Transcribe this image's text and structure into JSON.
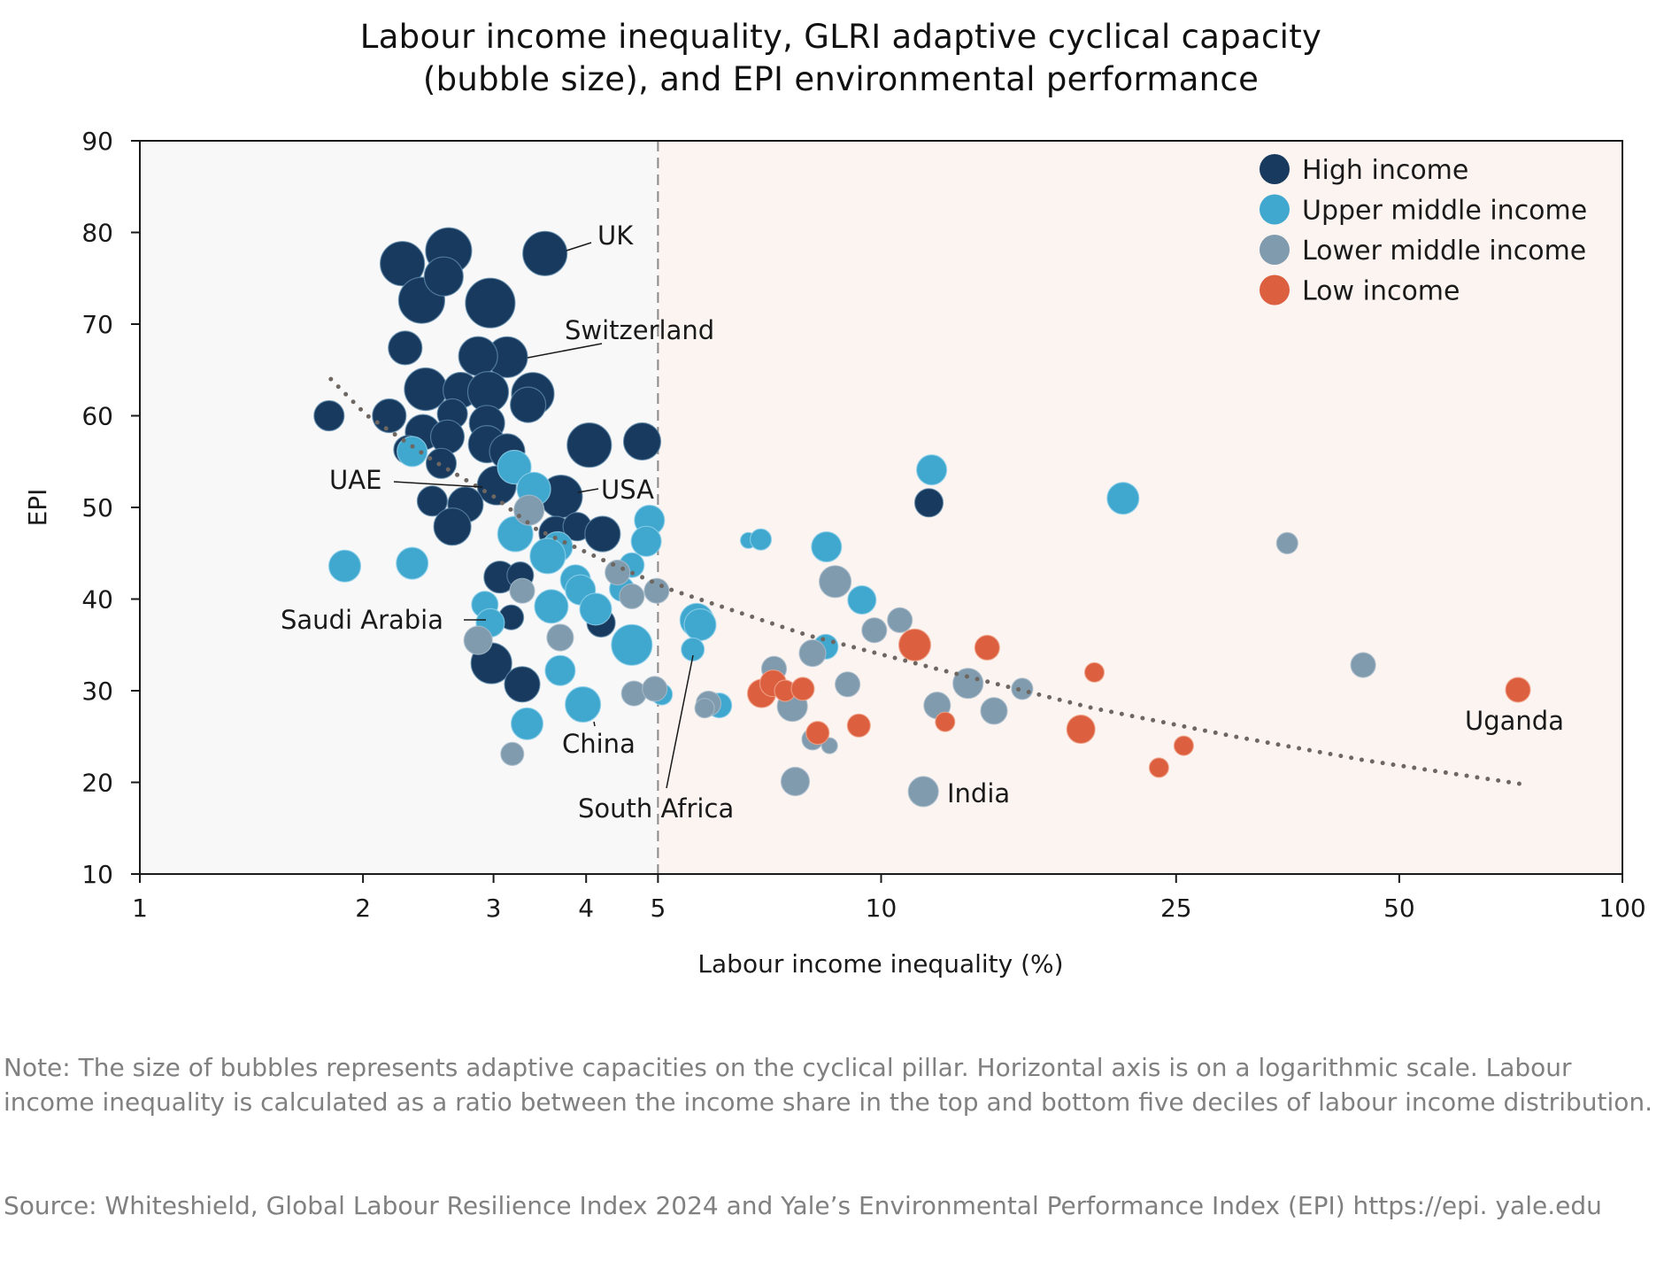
{
  "chart_data": {
    "type": "scatter",
    "subtype": "bubble",
    "title_lines": [
      "Labour income inequality, GLRI adaptive cyclical capacity",
      "(bubble size), and EPI environmental performance"
    ],
    "xlabel": "Labour income inequality (%)",
    "ylabel": "EPI",
    "x_scale": "log",
    "xlim": [
      1,
      100
    ],
    "ylim": [
      10,
      90
    ],
    "x_ticks": [
      1,
      2,
      3,
      4,
      5,
      10,
      25,
      50,
      100
    ],
    "x_tick_labels": [
      "1",
      "2",
      "3",
      "4",
      "5",
      "10",
      "25",
      "50",
      "100"
    ],
    "y_ticks": [
      10,
      20,
      30,
      40,
      50,
      60,
      70,
      80,
      90
    ],
    "y_tick_labels": [
      "10",
      "20",
      "30",
      "40",
      "50",
      "60",
      "70",
      "80",
      "90"
    ],
    "grid": false,
    "reference_line": {
      "x": 5,
      "style": "dashed",
      "color": "#8a8a8a"
    },
    "regions": [
      {
        "from": 1,
        "to": 5,
        "color": "#f8f8f8"
      },
      {
        "from": 5,
        "to": 100,
        "color": "#fcf4f1"
      }
    ],
    "legend": {
      "placement": "top-right",
      "entries": [
        {
          "key": "high",
          "label": "High income",
          "color": "#173a5e"
        },
        {
          "key": "upper",
          "label": "Upper middle income",
          "color": "#40a8cf"
        },
        {
          "key": "lower",
          "label": "Lower middle income",
          "color": "#7f9bad"
        },
        {
          "key": "low",
          "label": "Low income",
          "color": "#dc6040"
        }
      ]
    },
    "size_legend_note": "bubble size = adaptive capacity on the cyclical pillar (relative)",
    "trendline": {
      "style": "dotted",
      "color": "#6e6660",
      "points": [
        [
          1.81,
          64.0
        ],
        [
          2.02,
          60.1
        ],
        [
          2.5,
          55.0
        ],
        [
          3.0,
          51.2
        ],
        [
          3.43,
          47.6
        ],
        [
          4.23,
          44.2
        ],
        [
          5.17,
          41.1
        ],
        [
          7.92,
          36.1
        ],
        [
          12.0,
          32.3
        ],
        [
          19.3,
          28.1
        ],
        [
          30.0,
          25.0
        ],
        [
          45.0,
          22.4
        ],
        [
          72.7,
          19.85
        ]
      ]
    },
    "series": [
      {
        "name": "High income",
        "key": "high",
        "points": [
          {
            "x": 2.26,
            "y": 76.6,
            "size": 75
          },
          {
            "x": 2.61,
            "y": 78.0,
            "size": 78
          },
          {
            "x": 2.4,
            "y": 72.6,
            "size": 78
          },
          {
            "x": 2.57,
            "y": 75.2,
            "size": 66
          },
          {
            "x": 2.97,
            "y": 72.3,
            "size": 84
          },
          {
            "x": 3.52,
            "y": 77.7,
            "size": 75,
            "label": "UK"
          },
          {
            "x": 2.28,
            "y": 67.4,
            "size": 57
          },
          {
            "x": 3.13,
            "y": 66.4,
            "size": 69,
            "label": "Switzerland"
          },
          {
            "x": 2.86,
            "y": 66.5,
            "size": 66
          },
          {
            "x": 1.8,
            "y": 60.0,
            "size": 51
          },
          {
            "x": 2.17,
            "y": 60.0,
            "size": 57
          },
          {
            "x": 2.43,
            "y": 62.9,
            "size": 72
          },
          {
            "x": 2.71,
            "y": 62.8,
            "size": 60
          },
          {
            "x": 2.95,
            "y": 62.6,
            "size": 69
          },
          {
            "x": 3.39,
            "y": 62.4,
            "size": 72
          },
          {
            "x": 3.34,
            "y": 61.2,
            "size": 60
          },
          {
            "x": 2.64,
            "y": 60.2,
            "size": 51
          },
          {
            "x": 2.41,
            "y": 58.2,
            "size": 60
          },
          {
            "x": 2.6,
            "y": 57.7,
            "size": 57
          },
          {
            "x": 2.94,
            "y": 59.2,
            "size": 60
          },
          {
            "x": 2.94,
            "y": 56.9,
            "size": 63
          },
          {
            "x": 3.13,
            "y": 56.1,
            "size": 60
          },
          {
            "x": 2.3,
            "y": 56.3,
            "size": 48
          },
          {
            "x": 2.55,
            "y": 54.8,
            "size": 51
          },
          {
            "x": 3.03,
            "y": 52.4,
            "size": 66
          },
          {
            "x": 4.04,
            "y": 56.8,
            "size": 75
          },
          {
            "x": 4.76,
            "y": 57.2,
            "size": 63
          },
          {
            "x": 3.7,
            "y": 51.2,
            "size": 72,
            "label": "USA"
          },
          {
            "x": 2.48,
            "y": 50.7,
            "size": 51
          },
          {
            "x": 2.75,
            "y": 50.3,
            "size": 60,
            "label": "UAE"
          },
          {
            "x": 2.64,
            "y": 47.9,
            "size": 63
          },
          {
            "x": 3.64,
            "y": 47.2,
            "size": 57
          },
          {
            "x": 3.89,
            "y": 47.9,
            "size": 48
          },
          {
            "x": 4.21,
            "y": 47.1,
            "size": 60
          },
          {
            "x": 3.06,
            "y": 42.4,
            "size": 54
          },
          {
            "x": 3.26,
            "y": 42.6,
            "size": 45
          },
          {
            "x": 3.17,
            "y": 38.0,
            "size": 42
          },
          {
            "x": 4.19,
            "y": 37.4,
            "size": 48
          },
          {
            "x": 2.98,
            "y": 33.0,
            "size": 69
          },
          {
            "x": 3.28,
            "y": 30.7,
            "size": 60
          },
          {
            "x": 11.6,
            "y": 50.5,
            "size": 48
          }
        ]
      },
      {
        "name": "Upper middle income",
        "key": "upper",
        "points": [
          {
            "x": 2.33,
            "y": 56.1,
            "size": 51
          },
          {
            "x": 3.2,
            "y": 54.4,
            "size": 57
          },
          {
            "x": 3.4,
            "y": 52.0,
            "size": 57
          },
          {
            "x": 3.21,
            "y": 47.1,
            "size": 60
          },
          {
            "x": 3.66,
            "y": 45.7,
            "size": 51
          },
          {
            "x": 3.55,
            "y": 44.7,
            "size": 60
          },
          {
            "x": 1.89,
            "y": 43.6,
            "size": 54
          },
          {
            "x": 2.33,
            "y": 43.9,
            "size": 54
          },
          {
            "x": 3.87,
            "y": 42.1,
            "size": 51
          },
          {
            "x": 3.93,
            "y": 41.0,
            "size": 51
          },
          {
            "x": 4.87,
            "y": 48.6,
            "size": 51
          },
          {
            "x": 4.82,
            "y": 46.3,
            "size": 51
          },
          {
            "x": 4.61,
            "y": 43.7,
            "size": 42
          },
          {
            "x": 4.47,
            "y": 41.1,
            "size": 42
          },
          {
            "x": 2.92,
            "y": 39.4,
            "size": 45
          },
          {
            "x": 2.97,
            "y": 37.4,
            "size": 48,
            "label": "Saudi Arabia"
          },
          {
            "x": 3.59,
            "y": 39.2,
            "size": 57
          },
          {
            "x": 4.12,
            "y": 38.9,
            "size": 54
          },
          {
            "x": 4.61,
            "y": 35.0,
            "size": 69
          },
          {
            "x": 3.69,
            "y": 32.2,
            "size": 51
          },
          {
            "x": 3.96,
            "y": 28.5,
            "size": 60,
            "label": "China"
          },
          {
            "x": 3.33,
            "y": 26.4,
            "size": 54
          },
          {
            "x": 5.06,
            "y": 29.6,
            "size": 36
          },
          {
            "x": 5.64,
            "y": 37.7,
            "size": 57
          },
          {
            "x": 5.7,
            "y": 37.2,
            "size": 54
          },
          {
            "x": 5.57,
            "y": 34.5,
            "size": 39,
            "label": "South Africa"
          },
          {
            "x": 6.05,
            "y": 28.4,
            "size": 42
          },
          {
            "x": 6.62,
            "y": 46.4,
            "size": 27
          },
          {
            "x": 6.88,
            "y": 46.5,
            "size": 36
          },
          {
            "x": 8.44,
            "y": 45.7,
            "size": 51
          },
          {
            "x": 9.42,
            "y": 39.9,
            "size": 48
          },
          {
            "x": 8.42,
            "y": 34.8,
            "size": 42
          },
          {
            "x": 11.7,
            "y": 54.1,
            "size": 51
          },
          {
            "x": 21.2,
            "y": 51.0,
            "size": 54
          }
        ]
      },
      {
        "name": "Lower middle income",
        "key": "lower",
        "points": [
          {
            "x": 3.35,
            "y": 49.7,
            "size": 51
          },
          {
            "x": 4.41,
            "y": 42.9,
            "size": 42
          },
          {
            "x": 4.61,
            "y": 40.3,
            "size": 42
          },
          {
            "x": 4.98,
            "y": 40.9,
            "size": 42
          },
          {
            "x": 3.28,
            "y": 40.9,
            "size": 42
          },
          {
            "x": 2.86,
            "y": 35.5,
            "size": 48
          },
          {
            "x": 3.69,
            "y": 35.8,
            "size": 45
          },
          {
            "x": 4.64,
            "y": 29.7,
            "size": 42
          },
          {
            "x": 4.95,
            "y": 30.2,
            "size": 42
          },
          {
            "x": 3.18,
            "y": 23.1,
            "size": 39
          },
          {
            "x": 5.85,
            "y": 28.6,
            "size": 42
          },
          {
            "x": 5.78,
            "y": 28.1,
            "size": 33
          },
          {
            "x": 7.17,
            "y": 32.4,
            "size": 42
          },
          {
            "x": 7.59,
            "y": 28.3,
            "size": 51
          },
          {
            "x": 8.08,
            "y": 34.1,
            "size": 45
          },
          {
            "x": 8.67,
            "y": 41.9,
            "size": 54
          },
          {
            "x": 9.01,
            "y": 30.7,
            "size": 42
          },
          {
            "x": 9.79,
            "y": 36.6,
            "size": 42
          },
          {
            "x": 10.6,
            "y": 37.7,
            "size": 42
          },
          {
            "x": 8.08,
            "y": 24.7,
            "size": 36
          },
          {
            "x": 8.52,
            "y": 24.0,
            "size": 27
          },
          {
            "x": 7.66,
            "y": 20.1,
            "size": 48
          },
          {
            "x": 11.4,
            "y": 19.0,
            "size": 51,
            "label": "India"
          },
          {
            "x": 11.9,
            "y": 28.4,
            "size": 45
          },
          {
            "x": 13.1,
            "y": 30.8,
            "size": 51
          },
          {
            "x": 14.2,
            "y": 27.8,
            "size": 45
          },
          {
            "x": 15.5,
            "y": 30.2,
            "size": 36
          },
          {
            "x": 35.3,
            "y": 46.1,
            "size": 36
          },
          {
            "x": 44.7,
            "y": 32.8,
            "size": 42
          }
        ]
      },
      {
        "name": "Low income",
        "key": "low",
        "points": [
          {
            "x": 6.9,
            "y": 29.7,
            "size": 48
          },
          {
            "x": 7.15,
            "y": 30.8,
            "size": 45
          },
          {
            "x": 7.42,
            "y": 30.0,
            "size": 36
          },
          {
            "x": 7.84,
            "y": 30.2,
            "size": 39
          },
          {
            "x": 8.21,
            "y": 25.4,
            "size": 39
          },
          {
            "x": 9.33,
            "y": 26.2,
            "size": 39
          },
          {
            "x": 11.1,
            "y": 35.0,
            "size": 54
          },
          {
            "x": 12.2,
            "y": 26.6,
            "size": 33
          },
          {
            "x": 13.9,
            "y": 34.7,
            "size": 42
          },
          {
            "x": 18.6,
            "y": 25.8,
            "size": 48
          },
          {
            "x": 19.4,
            "y": 32.0,
            "size": 33
          },
          {
            "x": 23.7,
            "y": 21.6,
            "size": 33
          },
          {
            "x": 25.6,
            "y": 24.0,
            "size": 33
          },
          {
            "x": 72.3,
            "y": 30.1,
            "size": 42,
            "label": "Uganda"
          }
        ]
      }
    ],
    "annotations": [
      {
        "text": "UK",
        "x": 3.52,
        "y": 77.7
      },
      {
        "text": "Switzerland",
        "x": 3.13,
        "y": 66.4
      },
      {
        "text": "UAE",
        "x": 2.75,
        "y": 50.3
      },
      {
        "text": "USA",
        "x": 3.7,
        "y": 51.2
      },
      {
        "text": "Saudi Arabia",
        "x": 2.97,
        "y": 37.4
      },
      {
        "text": "China",
        "x": 3.96,
        "y": 28.5
      },
      {
        "text": "South Africa",
        "x": 5.57,
        "y": 34.5
      },
      {
        "text": "India",
        "x": 11.4,
        "y": 19.0
      },
      {
        "text": "Uganda",
        "x": 72.3,
        "y": 30.1
      }
    ]
  },
  "footer": {
    "note": "Note: The size of bubbles represents adaptive capacities on the cyclical pillar. Horizontal axis is on a logarithmic scale. Labour income inequality is calculated as a ratio between the income share in the top and bottom five deciles of labour income distribution.",
    "source": "Source: Whiteshield, Global Labour Resilience Index 2024 and Yale’s Environmental Performance Index (EPI) https://epi. yale.edu"
  }
}
